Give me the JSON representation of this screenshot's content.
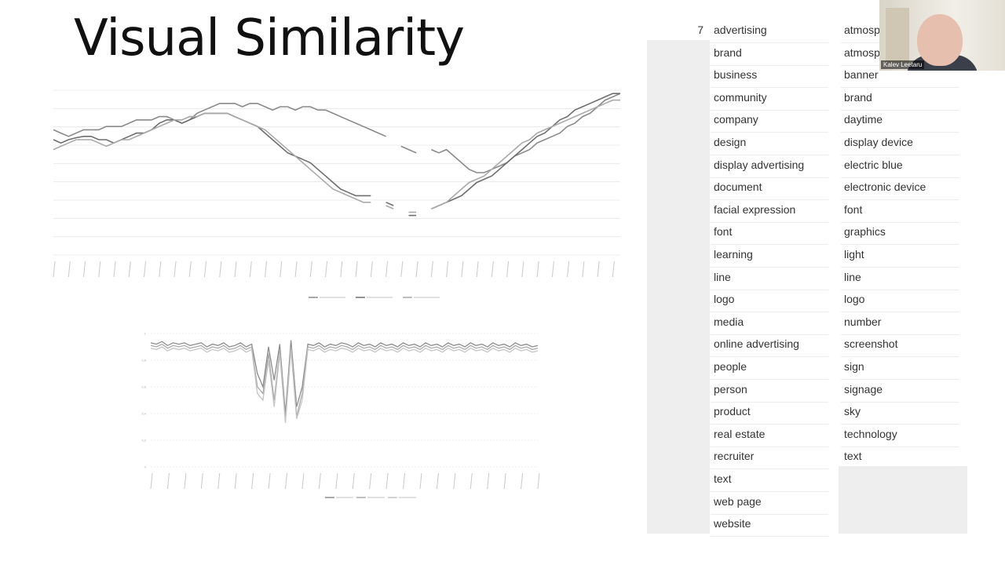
{
  "slide": {
    "title": "Visual Similarity"
  },
  "webcam": {
    "name": "Kalev Leetaru"
  },
  "table": {
    "row_number": "7",
    "left_column": [
      "advertising",
      "brand",
      "business",
      "community",
      "company",
      "design",
      "display advertising",
      "document",
      "facial expression",
      "font",
      "learning",
      "line",
      "logo",
      "media",
      "online advertising",
      "people",
      "person",
      "product",
      "real estate",
      "recruiter",
      "text",
      "web page",
      "website"
    ],
    "right_column": [
      "atmosp",
      "atmosp",
      "banner",
      "brand",
      "daytime",
      "display device",
      "electric blue",
      "electronic device",
      "font",
      "graphics",
      "light",
      "line",
      "logo",
      "number",
      "screenshot",
      "sign",
      "signage",
      "sky",
      "technology",
      "text"
    ]
  },
  "chart_data": [
    {
      "type": "line",
      "x": [
        1,
        2,
        3,
        4,
        5,
        6,
        7,
        8,
        9,
        10,
        11,
        12,
        13,
        14,
        15,
        16,
        17,
        18,
        19,
        20,
        21,
        22,
        23,
        24,
        25,
        26,
        27,
        28,
        29,
        30,
        31,
        32,
        33,
        34,
        35,
        36,
        37,
        38,
        39,
        40,
        41,
        42,
        43,
        44,
        45,
        46,
        47,
        48,
        49,
        50,
        51,
        52,
        53,
        54,
        55,
        56,
        57,
        58,
        59,
        60,
        61,
        62,
        63,
        64,
        65,
        66,
        67,
        68,
        69,
        70,
        71,
        72,
        73,
        74,
        75,
        76
      ],
      "ylim": [
        0.7,
        0.95
      ],
      "series": [
        {
          "color": "#8a8a8a",
          "values": [
            0.89,
            0.885,
            0.88,
            0.885,
            0.89,
            0.89,
            0.89,
            0.895,
            0.895,
            0.895,
            0.9,
            0.905,
            0.905,
            0.905,
            0.91,
            0.91,
            0.905,
            0.9,
            0.905,
            0.915,
            0.92,
            0.925,
            0.93,
            0.93,
            0.93,
            0.925,
            0.93,
            0.93,
            0.925,
            0.92,
            0.925,
            0.925,
            0.92,
            0.925,
            0.925,
            0.92,
            0.92,
            0.915,
            0.91,
            0.905,
            0.9,
            0.895,
            0.89,
            0.885,
            0.88,
            null,
            0.865,
            0.86,
            0.855,
            null,
            0.86,
            0.855,
            0.86,
            0.85,
            0.84,
            0.83,
            0.825,
            0.825,
            0.83,
            0.835,
            0.84,
            0.85,
            0.855,
            0.86,
            0.87,
            0.875,
            0.88,
            0.885,
            0.895,
            0.9,
            0.91,
            0.915,
            0.925,
            0.935,
            0.94,
            0.945
          ]
        },
        {
          "color": "#6e6e6e",
          "values": [
            0.875,
            0.87,
            0.875,
            0.878,
            0.88,
            0.88,
            0.875,
            0.875,
            0.87,
            0.875,
            0.88,
            0.885,
            0.885,
            0.89,
            0.9,
            0.905,
            0.905,
            0.9,
            0.905,
            0.91,
            0.915,
            0.915,
            0.915,
            0.915,
            0.91,
            0.905,
            0.9,
            0.895,
            0.885,
            0.875,
            0.865,
            0.855,
            0.85,
            0.845,
            0.84,
            0.83,
            0.82,
            0.81,
            0.8,
            0.795,
            0.79,
            0.79,
            0.79,
            null,
            0.78,
            0.775,
            null,
            0.76,
            0.76,
            null,
            0.77,
            0.775,
            0.78,
            0.785,
            0.79,
            0.8,
            0.81,
            0.815,
            0.82,
            0.83,
            0.84,
            0.85,
            0.86,
            0.87,
            0.88,
            0.885,
            0.895,
            0.905,
            0.91,
            0.92,
            0.925,
            0.93,
            0.935,
            0.94,
            0.945,
            0.945
          ]
        },
        {
          "color": "#a9a9a9",
          "values": [
            0.86,
            0.865,
            0.87,
            0.875,
            0.875,
            0.875,
            0.87,
            0.865,
            0.87,
            0.875,
            0.875,
            0.88,
            0.885,
            0.89,
            0.895,
            0.9,
            0.905,
            0.905,
            0.91,
            0.91,
            0.915,
            0.915,
            0.915,
            0.915,
            0.91,
            0.905,
            0.9,
            0.895,
            0.89,
            0.88,
            0.87,
            0.86,
            0.85,
            0.84,
            0.83,
            0.82,
            0.81,
            0.8,
            0.795,
            0.79,
            0.785,
            0.78,
            0.78,
            null,
            0.775,
            0.77,
            null,
            0.765,
            0.765,
            null,
            0.77,
            0.775,
            0.78,
            0.79,
            0.8,
            0.81,
            0.815,
            0.82,
            0.83,
            0.84,
            0.85,
            0.86,
            0.87,
            0.875,
            0.885,
            0.89,
            0.895,
            0.9,
            0.905,
            0.91,
            0.915,
            0.92,
            0.925,
            0.93,
            0.935,
            0.935
          ]
        }
      ]
    },
    {
      "type": "line",
      "x": [
        1,
        2,
        3,
        4,
        5,
        6,
        7,
        8,
        9,
        10,
        11,
        12,
        13,
        14,
        15,
        16,
        17,
        18,
        19,
        20,
        21,
        22,
        23,
        24,
        25,
        26,
        27,
        28,
        29,
        30,
        31,
        32,
        33,
        34,
        35,
        36,
        37,
        38,
        39,
        40,
        41,
        42,
        43,
        44,
        45,
        46,
        47,
        48,
        49,
        50,
        51,
        52,
        53,
        54,
        55,
        56,
        57,
        58,
        59,
        60,
        61,
        62,
        63,
        64,
        65,
        66,
        67,
        68,
        69,
        70
      ],
      "ylim": [
        0,
        1
      ],
      "yticks": [
        "0",
        "0,2",
        "0,4",
        "0,6",
        "0,8",
        "1"
      ],
      "series": [
        {
          "color": "#8c8c8c",
          "values": [
            0.93,
            0.92,
            0.94,
            0.91,
            0.93,
            0.92,
            0.93,
            0.91,
            0.92,
            0.93,
            0.9,
            0.92,
            0.91,
            0.93,
            0.9,
            0.91,
            0.93,
            0.9,
            0.92,
            0.7,
            0.6,
            0.9,
            0.65,
            0.92,
            0.4,
            0.95,
            0.45,
            0.6,
            0.92,
            0.91,
            0.93,
            0.9,
            0.92,
            0.91,
            0.93,
            0.92,
            0.9,
            0.93,
            0.91,
            0.92,
            0.9,
            0.93,
            0.91,
            0.92,
            0.9,
            0.93,
            0.91,
            0.92,
            0.9,
            0.93,
            0.91,
            0.92,
            0.9,
            0.93,
            0.91,
            0.92,
            0.9,
            0.93,
            0.91,
            0.92,
            0.9,
            0.93,
            0.91,
            0.92,
            0.9,
            0.93,
            0.91,
            0.92,
            0.9,
            0.91
          ]
        },
        {
          "color": "#aaaaaa",
          "values": [
            0.91,
            0.9,
            0.92,
            0.89,
            0.91,
            0.9,
            0.91,
            0.89,
            0.9,
            0.91,
            0.88,
            0.9,
            0.89,
            0.91,
            0.88,
            0.89,
            0.91,
            0.88,
            0.9,
            0.6,
            0.55,
            0.85,
            0.5,
            0.88,
            0.35,
            0.9,
            0.38,
            0.55,
            0.9,
            0.89,
            0.91,
            0.88,
            0.9,
            0.89,
            0.91,
            0.9,
            0.88,
            0.91,
            0.89,
            0.9,
            0.88,
            0.91,
            0.89,
            0.9,
            0.88,
            0.91,
            0.89,
            0.9,
            0.88,
            0.91,
            0.89,
            0.9,
            0.88,
            0.91,
            0.89,
            0.9,
            0.88,
            0.91,
            0.89,
            0.9,
            0.88,
            0.91,
            0.89,
            0.9,
            0.88,
            0.91,
            0.89,
            0.9,
            0.88,
            0.89
          ]
        },
        {
          "color": "#c4c4c4",
          "values": [
            0.89,
            0.88,
            0.9,
            0.87,
            0.89,
            0.88,
            0.89,
            0.87,
            0.88,
            0.89,
            0.86,
            0.88,
            0.87,
            0.89,
            0.86,
            0.87,
            0.89,
            0.86,
            0.88,
            0.55,
            0.5,
            0.8,
            0.45,
            0.85,
            0.33,
            0.88,
            0.36,
            0.5,
            0.88,
            0.87,
            0.89,
            0.86,
            0.88,
            0.87,
            0.89,
            0.88,
            0.86,
            0.89,
            0.87,
            0.88,
            0.86,
            0.89,
            0.87,
            0.88,
            0.86,
            0.89,
            0.87,
            0.88,
            0.86,
            0.89,
            0.87,
            0.88,
            0.86,
            0.89,
            0.87,
            0.88,
            0.86,
            0.89,
            0.87,
            0.88,
            0.86,
            0.89,
            0.87,
            0.88,
            0.86,
            0.89,
            0.87,
            0.88,
            0.86,
            0.87
          ]
        }
      ]
    }
  ]
}
